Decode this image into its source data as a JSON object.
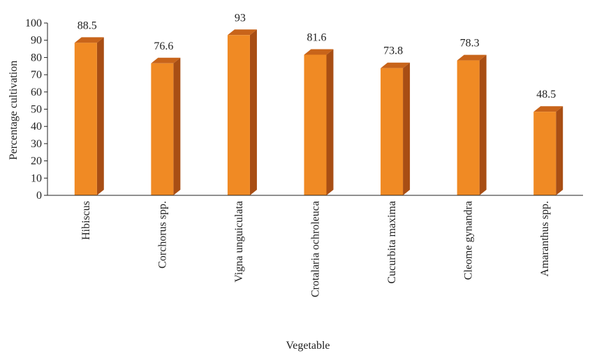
{
  "chart_data": {
    "type": "bar",
    "categories": [
      "Hibiscus",
      "Corchorus spp.",
      "Vigna unguiculata",
      "Crotalaria ochroleuca",
      "Cucurbita maxima",
      "Cleome gynandra",
      "Amaranthus spp."
    ],
    "values": [
      88.5,
      76.6,
      93,
      81.6,
      73.8,
      78.3,
      48.5
    ],
    "value_labels": [
      "88.5",
      "76.6",
      "93",
      "81.6",
      "73.8",
      "78.3",
      "48.5"
    ],
    "xlabel": "Vegetable",
    "ylabel": "Percentage cultivation",
    "ylim": [
      0,
      100
    ],
    "yticks": [
      "0",
      "10",
      "20",
      "30",
      "40",
      "50",
      "60",
      "70",
      "80",
      "90",
      "100"
    ],
    "grid": false,
    "legend": "none",
    "colors": {
      "bar_front": "#F08A24",
      "bar_side": "#A84E14",
      "bar_top": "#C8641A"
    }
  }
}
